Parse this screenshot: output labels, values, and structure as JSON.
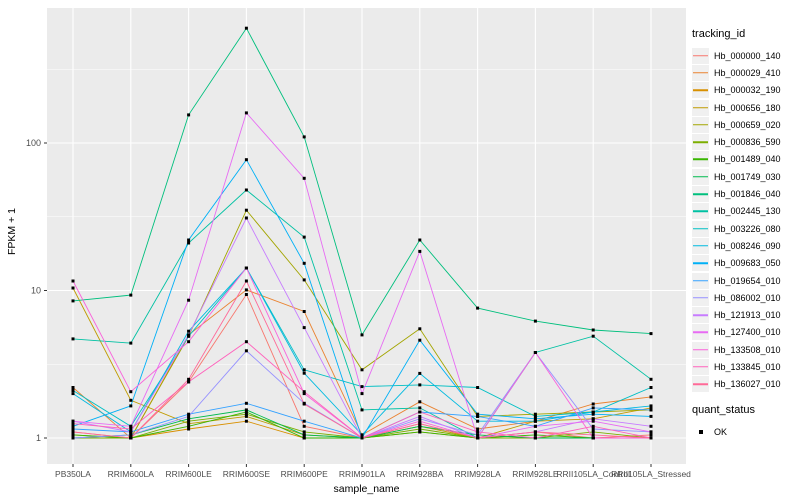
{
  "chart_data": {
    "type": "line",
    "title": "",
    "xlabel": "sample_name",
    "ylabel": "FPKM + 1",
    "y_scale": "log10",
    "y_ticks": [
      1,
      10,
      100
    ],
    "ylim": [
      1,
      650
    ],
    "grid": true,
    "panel_background": "#EBEBEB",
    "gridline_color": "#FFFFFF",
    "tick_label_color": "#4D4D4D",
    "point_marker": "black-square",
    "legend_title": "tracking_id",
    "legend_position": "right",
    "quant_status": {
      "title": "quant_status",
      "items": [
        "OK"
      ]
    },
    "categories": [
      "PB350LA",
      "RRIM600LA",
      "RRIM600LE",
      "RRIM600SE",
      "RRIM600PE",
      "RRIM901LA",
      "RRIM928BA",
      "RRIM928LA",
      "RRIM928LE",
      "RRII105LA_Control",
      "RRII105LA_Stressed"
    ],
    "series": [
      {
        "name": "Hb_000000_140",
        "color": "#F8766D",
        "values": [
          1.1,
          1.0,
          2.4,
          9.4,
          1.2,
          1.0,
          1.25,
          1.0,
          1.1,
          1.0,
          1.05
        ]
      },
      {
        "name": "Hb_000029_410",
        "color": "#EA8331",
        "values": [
          2.2,
          1.0,
          5.0,
          10.1,
          7.2,
          1.05,
          1.76,
          1.15,
          1.3,
          1.7,
          1.9
        ]
      },
      {
        "name": "Hb_000032_190",
        "color": "#D89000",
        "values": [
          1.0,
          1.0,
          1.15,
          1.3,
          1.0,
          1.0,
          1.1,
          1.0,
          1.0,
          1.0,
          1.0
        ]
      },
      {
        "name": "Hb_000656_180",
        "color": "#C09B00",
        "values": [
          10.4,
          1.8,
          1.25,
          1.4,
          1.05,
          1.0,
          1.2,
          1.0,
          1.3,
          1.35,
          1.6
        ]
      },
      {
        "name": "Hb_000659_020",
        "color": "#A3A500",
        "values": [
          1.05,
          1.0,
          4.9,
          35.0,
          11.8,
          2.9,
          5.5,
          1.4,
          1.45,
          1.5,
          1.55
        ]
      },
      {
        "name": "Hb_000836_590",
        "color": "#7CAE00",
        "values": [
          1.0,
          1.0,
          1.3,
          1.45,
          1.1,
          1.0,
          1.15,
          1.0,
          1.0,
          1.1,
          1.0
        ]
      },
      {
        "name": "Hb_001489_040",
        "color": "#39B600",
        "values": [
          1.05,
          1.0,
          1.2,
          1.5,
          1.0,
          1.0,
          1.1,
          1.0,
          1.05,
          1.0,
          1.0
        ]
      },
      {
        "name": "Hb_001749_030",
        "color": "#00BB4E",
        "values": [
          1.0,
          1.05,
          1.35,
          1.55,
          1.05,
          1.0,
          1.2,
          1.05,
          1.0,
          1.0,
          1.0
        ]
      },
      {
        "name": "Hb_001846_040",
        "color": "#00BF7D",
        "values": [
          8.5,
          9.3,
          155.0,
          600.0,
          110.0,
          5.0,
          22.0,
          7.6,
          6.2,
          5.4,
          5.1
        ]
      },
      {
        "name": "Hb_002445_130",
        "color": "#00C1A3",
        "values": [
          4.7,
          4.4,
          21.0,
          48.0,
          23.0,
          1.55,
          1.6,
          1.0,
          3.8,
          4.9,
          2.5
        ]
      },
      {
        "name": "Hb_003226_080",
        "color": "#00BFC4",
        "values": [
          2.1,
          1.2,
          4.9,
          14.2,
          2.9,
          2.23,
          2.29,
          2.2,
          1.4,
          1.5,
          2.2
        ]
      },
      {
        "name": "Hb_008246_090",
        "color": "#00BAE0",
        "values": [
          2.0,
          1.1,
          5.3,
          14.2,
          2.75,
          1.05,
          2.74,
          1.3,
          1.3,
          1.5,
          1.65
        ]
      },
      {
        "name": "Hb_009683_050",
        "color": "#00B0F6",
        "values": [
          1.2,
          1.65,
          22.0,
          77.0,
          15.3,
          1.0,
          4.6,
          1.45,
          1.35,
          1.45,
          1.4
        ]
      },
      {
        "name": "Hb_019654_010",
        "color": "#35A2FF",
        "values": [
          1.15,
          1.1,
          1.45,
          1.72,
          1.3,
          1.0,
          1.5,
          1.4,
          1.2,
          1.6,
          1.55
        ]
      },
      {
        "name": "Hb_086002_010",
        "color": "#9590FF",
        "values": [
          1.0,
          1.05,
          1.4,
          3.9,
          1.72,
          1.0,
          1.35,
          1.05,
          3.8,
          1.15,
          1.1
        ]
      },
      {
        "name": "Hb_121913_010",
        "color": "#C77CFF",
        "values": [
          1.3,
          1.1,
          5.0,
          31.0,
          5.6,
          1.0,
          1.4,
          1.0,
          1.1,
          1.35,
          1.2
        ]
      },
      {
        "name": "Hb_127400_010",
        "color": "#E76BF3",
        "values": [
          1.3,
          1.2,
          8.6,
          160.0,
          57.6,
          2.0,
          18.4,
          1.0,
          1.2,
          1.3,
          1.1
        ]
      },
      {
        "name": "Hb_133508_010",
        "color": "#FA62DB",
        "values": [
          11.6,
          2.06,
          4.5,
          14.2,
          2.0,
          1.0,
          1.3,
          1.0,
          3.8,
          1.0,
          1.0
        ]
      },
      {
        "name": "Hb_133845_010",
        "color": "#FF62BC",
        "values": [
          1.25,
          1.15,
          2.4,
          4.5,
          2.06,
          1.0,
          1.5,
          1.1,
          1.0,
          1.2,
          1.0
        ]
      },
      {
        "name": "Hb_136027_010",
        "color": "#FF6A98",
        "values": [
          1.1,
          1.0,
          2.5,
          11.6,
          1.7,
          1.0,
          1.25,
          1.0,
          1.1,
          1.05,
          1.0
        ]
      }
    ]
  }
}
